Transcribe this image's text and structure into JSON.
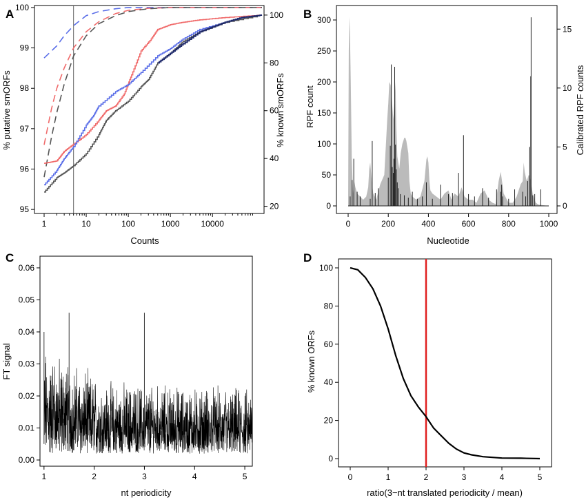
{
  "chart_data": [
    {
      "panel": "A",
      "type": "line",
      "xlabel": "Counts",
      "ylabel_left": "% putative smORFs",
      "ylabel_right": "% known smORFs",
      "x_scale": "log10",
      "xlim": [
        1,
        150000
      ],
      "ylim_left": [
        94.9,
        100.05
      ],
      "ylim_right": [
        17,
        104
      ],
      "x_ticks": [
        1,
        10,
        100,
        1000,
        10000
      ],
      "x_tick_labels": [
        "1",
        "10",
        "100",
        "1000",
        "10000"
      ],
      "y_ticks_left": [
        95,
        96,
        97,
        98,
        99,
        100
      ],
      "y_ticks_right": [
        20,
        40,
        60,
        80,
        100
      ],
      "vline_x": 5,
      "colors": {
        "blue": "#5a6ee8",
        "red": "#f06a6a",
        "gray": "#666666",
        "navy": "#1f2a6b"
      },
      "series": [
        {
          "style": "dashed",
          "color": "#5a6ee8",
          "axis": "left",
          "x": [
            1,
            2,
            3,
            5,
            10,
            20,
            50,
            100,
            300,
            1000,
            150000
          ],
          "y": [
            98.75,
            99.05,
            99.3,
            99.55,
            99.8,
            99.9,
            99.97,
            100,
            100,
            100,
            100
          ]
        },
        {
          "style": "dashed",
          "color": "#f06a6a",
          "axis": "left",
          "x": [
            1,
            1.5,
            2,
            3,
            5,
            10,
            20,
            50,
            100,
            300,
            1000,
            3000,
            150000
          ],
          "y": [
            96.6,
            97.5,
            98.0,
            98.5,
            99.0,
            99.4,
            99.65,
            99.85,
            99.93,
            99.98,
            100,
            100,
            100
          ]
        },
        {
          "style": "dashed",
          "color": "#555555",
          "axis": "left",
          "x": [
            1,
            1.5,
            2,
            3,
            5,
            10,
            20,
            50,
            100,
            300,
            1000,
            3000,
            150000
          ],
          "y": [
            95.8,
            96.8,
            97.4,
            98.1,
            98.8,
            99.3,
            99.6,
            99.8,
            99.9,
            99.97,
            100,
            100,
            100
          ]
        },
        {
          "style": "solid",
          "color": "#f06a6a",
          "axis": "right",
          "x": [
            1,
            2,
            3,
            5,
            10,
            20,
            30,
            50,
            80,
            120,
            200,
            350,
            500,
            1000,
            2000,
            5000,
            20000,
            150000
          ],
          "y": [
            38,
            39,
            43,
            46,
            50,
            56,
            60,
            62,
            67,
            75,
            85,
            90,
            94,
            96,
            97,
            98,
            99,
            100
          ]
        },
        {
          "style": "solid",
          "color": "#5a6ee8",
          "axis": "right",
          "x": [
            1,
            2,
            3,
            5,
            10,
            15,
            20,
            50,
            100,
            200,
            500,
            1000,
            2000,
            5000,
            20000,
            50000,
            150000
          ],
          "y": [
            29,
            35,
            40,
            45,
            54,
            58,
            62,
            68,
            71,
            76,
            83,
            86,
            90,
            94,
            97,
            99,
            100
          ]
        },
        {
          "style": "solid",
          "color": "#555555",
          "axis": "right",
          "x": [
            1,
            2,
            3,
            5,
            10,
            20,
            30,
            50,
            100,
            200,
            300,
            500,
            1000,
            2000,
            5000,
            20000,
            150000
          ],
          "y": [
            26,
            32,
            34,
            37,
            42,
            50,
            56,
            60,
            64,
            70,
            73,
            80,
            84,
            89,
            93,
            97,
            100
          ]
        },
        {
          "style": "solid",
          "color": "#1f2a6b",
          "axis": "right",
          "x": [
            500,
            1000,
            2000,
            5000,
            10000,
            20000,
            50000,
            150000
          ],
          "y": [
            80,
            84,
            88,
            93,
            95,
            97,
            99,
            100
          ]
        }
      ]
    },
    {
      "panel": "B",
      "type": "bar",
      "xlabel": "Nucleotide",
      "ylabel_left": "RPF count",
      "ylabel_right": "Calibrated RPF counts",
      "xlim": [
        0,
        1000
      ],
      "ylim_left": [
        0,
        310
      ],
      "ylim_right": [
        0,
        16.3
      ],
      "x_ticks": [
        0,
        200,
        400,
        600,
        800,
        1000
      ],
      "y_ticks_left": [
        0,
        50,
        100,
        150,
        200,
        250,
        300
      ],
      "y_ticks_right": [
        0,
        5,
        10,
        15
      ],
      "colors": {
        "area": "#bbbbbb",
        "spikes": "#222222"
      },
      "area_x": [
        0,
        3,
        6,
        9,
        13,
        18,
        24,
        30,
        36,
        45,
        60,
        75,
        90,
        100,
        105,
        110,
        118,
        125,
        140,
        160,
        180,
        190,
        195,
        200,
        205,
        212,
        218,
        225,
        232,
        236,
        240,
        245,
        255,
        262,
        270,
        280,
        285,
        290,
        300,
        305,
        312,
        320,
        340,
        360,
        380,
        390,
        395,
        400,
        405,
        410,
        420,
        440,
        460,
        480,
        500,
        515,
        530,
        550,
        565,
        580,
        600,
        620,
        640,
        660,
        680,
        700,
        720,
        735,
        750,
        760,
        765,
        775,
        800,
        820,
        840,
        860,
        870,
        875,
        880,
        890,
        900,
        905,
        910,
        920,
        935,
        950,
        1000
      ],
      "area_y": [
        0,
        250,
        305,
        280,
        200,
        80,
        20,
        40,
        30,
        20,
        15,
        10,
        15,
        30,
        60,
        70,
        40,
        20,
        10,
        35,
        50,
        110,
        140,
        165,
        200,
        195,
        170,
        140,
        175,
        200,
        130,
        80,
        60,
        85,
        100,
        110,
        110,
        105,
        85,
        40,
        20,
        15,
        10,
        15,
        40,
        75,
        80,
        70,
        40,
        25,
        20,
        15,
        10,
        20,
        25,
        10,
        20,
        15,
        30,
        15,
        10,
        10,
        5,
        20,
        25,
        10,
        5,
        3,
        40,
        55,
        45,
        20,
        5,
        5,
        15,
        35,
        40,
        70,
        55,
        40,
        50,
        48,
        40,
        20,
        5,
        2,
        0
      ],
      "spikes_x": [
        10,
        20,
        28,
        45,
        60,
        110,
        120,
        135,
        150,
        200,
        210,
        215,
        220,
        225,
        228,
        232,
        236,
        240,
        245,
        250,
        260,
        280,
        300,
        320,
        345,
        370,
        390,
        420,
        460,
        500,
        520,
        550,
        575,
        600,
        630,
        670,
        700,
        740,
        760,
        765,
        770,
        800,
        830,
        870,
        885,
        895,
        905,
        910,
        912,
        920,
        930,
        960
      ],
      "spikes_y_cal": [
        0.8,
        2.2,
        4.0,
        1.2,
        0.8,
        0.6,
        5.5,
        1.1,
        1.5,
        2.4,
        5.1,
        12.0,
        3.3,
        2.8,
        4.0,
        11.8,
        5.2,
        3.1,
        2.0,
        1.5,
        1.0,
        0.9,
        0.7,
        1.2,
        0.6,
        0.8,
        2.0,
        0.6,
        1.8,
        1.0,
        1.1,
        2.8,
        6.0,
        1.0,
        0.8,
        1.5,
        0.7,
        1.4,
        1.2,
        1.8,
        0.8,
        0.6,
        1.4,
        1.2,
        0.8,
        2.1,
        5.0,
        11.0,
        16.0,
        0.9,
        1.0,
        1.4
      ]
    },
    {
      "panel": "C",
      "type": "line",
      "xlabel": "nt periodicity",
      "ylabel": "FT signal",
      "xlim": [
        0.92,
        5.15
      ],
      "ylim": [
        0,
        0.0615
      ],
      "x_ticks": [
        1,
        2,
        3,
        4,
        5
      ],
      "y_ticks": [
        0.0,
        0.01,
        0.02,
        0.03,
        0.04,
        0.05,
        0.06
      ],
      "y_tick_labels": [
        "0.00",
        "0.01",
        "0.02",
        "0.03",
        "0.04",
        "0.05",
        "0.06"
      ],
      "spikes": [
        {
          "x": 1.5,
          "y": 0.046
        },
        {
          "x": 3.0,
          "y": 0.046
        },
        {
          "x": 1.0,
          "y": 0.04
        }
      ],
      "noise_x_range": [
        1.0,
        5.15
      ],
      "noise_level_start": 0.03,
      "noise_level_mid": 0.02,
      "noise_level_end": 0.018,
      "color": "#000000"
    },
    {
      "panel": "D",
      "type": "line",
      "xlabel": "ratio(3−nt translated periodicity / mean)",
      "ylabel": "% known ORFs",
      "xlim": [
        -0.2,
        5.2
      ],
      "ylim": [
        -5,
        104
      ],
      "x_ticks": [
        0,
        1,
        2,
        3,
        4,
        5
      ],
      "y_ticks": [
        0,
        20,
        40,
        60,
        80,
        100
      ],
      "vline_x": 2,
      "vline_color": "#e02020",
      "series": [
        {
          "color": "#000000",
          "x": [
            0,
            0.2,
            0.4,
            0.6,
            0.8,
            1.0,
            1.2,
            1.4,
            1.6,
            1.8,
            2.0,
            2.2,
            2.4,
            2.6,
            2.8,
            3.0,
            3.2,
            3.5,
            4.0,
            4.5,
            5.0
          ],
          "y": [
            100,
            99,
            95,
            89,
            80,
            68,
            54,
            42,
            33,
            27,
            22,
            16,
            12,
            8,
            5,
            3,
            2,
            1,
            0.3,
            0.2,
            0
          ]
        }
      ]
    }
  ]
}
